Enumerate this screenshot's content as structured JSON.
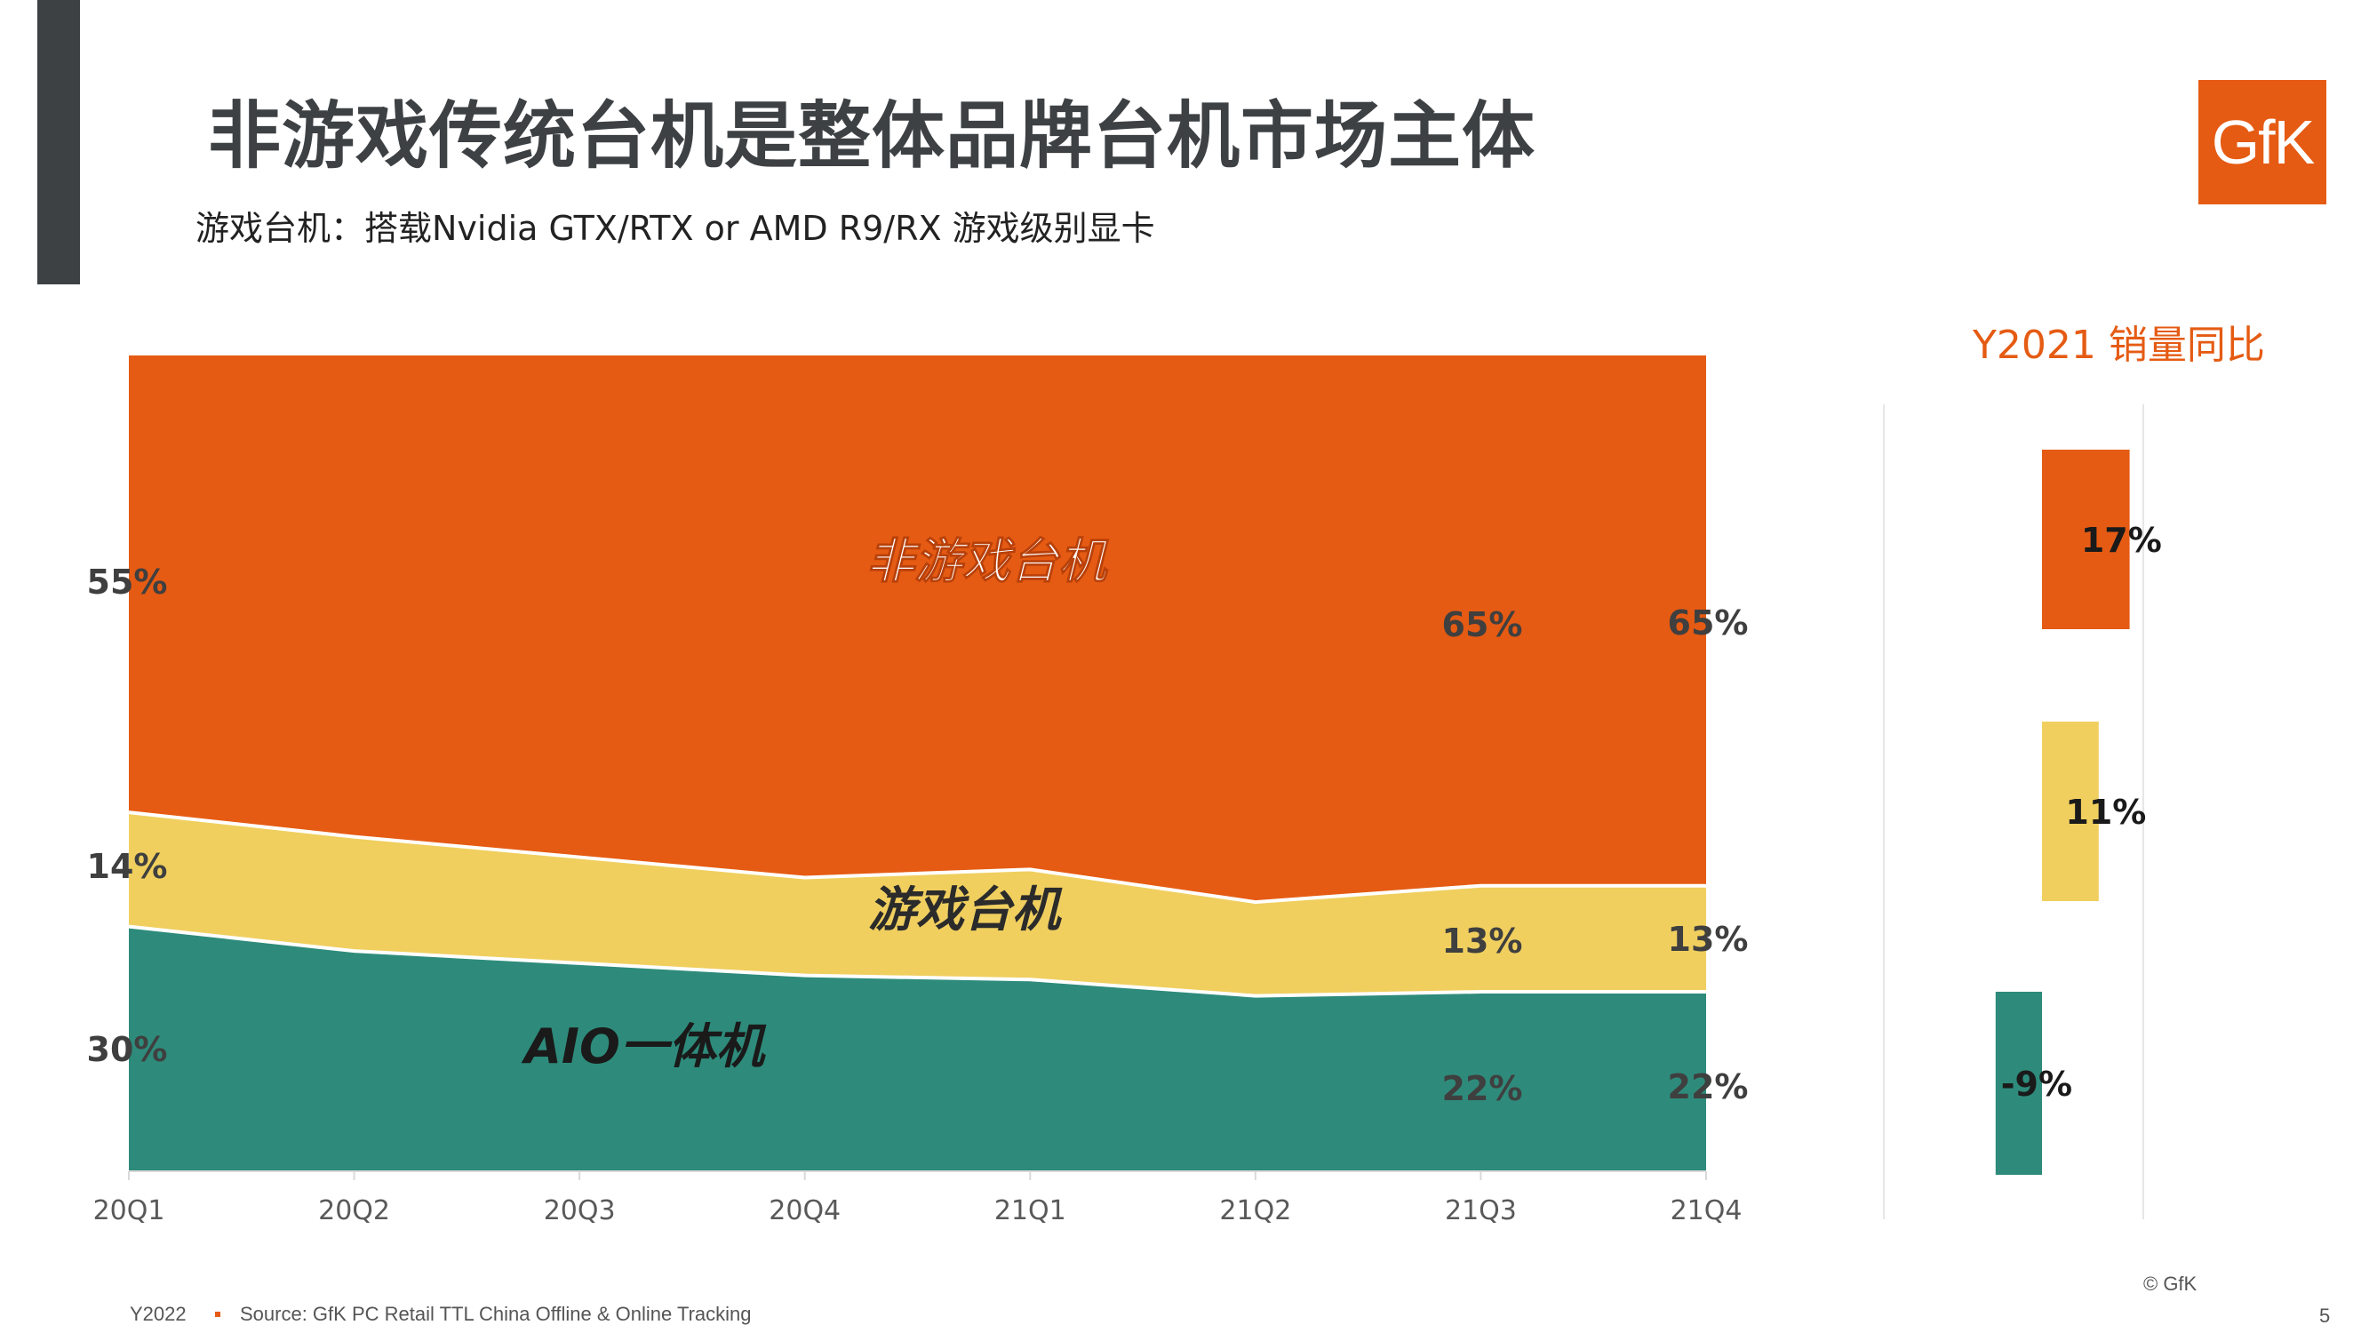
{
  "title": "非游戏传统台机是整体品牌台机市场主体",
  "subtitle": "游戏台机：搭载Nvidia GTX/RTX or AMD R9/RX 游戏级别显卡",
  "logo_text": "GfK",
  "yoy_title": "Y2021 销量同比",
  "footer": {
    "year": "Y2022",
    "source": "Source: GfK PC Retail TTL China Offline  & Online Tracking",
    "copyright": "© GfK",
    "page_number": "5"
  },
  "colors": {
    "non_gaming": "#e55b13",
    "gaming": "#f0cf5f",
    "aio": "#2e8b7b",
    "text_dark": "#3d4144",
    "axis_text": "#595959"
  },
  "chart_data": [
    {
      "type": "area",
      "stacked": true,
      "normalized": true,
      "x": [
        "20Q1",
        "20Q2",
        "20Q3",
        "20Q4",
        "21Q1",
        "21Q2",
        "21Q3",
        "21Q4"
      ],
      "ylim": [
        0,
        100
      ],
      "series": [
        {
          "name": "AIO一体机",
          "values": [
            30,
            27,
            25.5,
            24,
            23.5,
            21.5,
            22,
            22
          ]
        },
        {
          "name": "游戏台机",
          "values": [
            14,
            14,
            13,
            12,
            13.5,
            11.5,
            13,
            13
          ]
        },
        {
          "name": "非游戏台机",
          "values": [
            55,
            59,
            61.5,
            64,
            63,
            67,
            65,
            65
          ]
        }
      ],
      "data_labels": [
        {
          "series": "非游戏台机",
          "x": "20Q1",
          "text": "55%"
        },
        {
          "series": "游戏台机",
          "x": "20Q1",
          "text": "14%"
        },
        {
          "series": "AIO一体机",
          "x": "20Q1",
          "text": "30%"
        },
        {
          "series": "非游戏台机",
          "x": "21Q3",
          "text": "65%"
        },
        {
          "series": "游戏台机",
          "x": "21Q3",
          "text": "13%"
        },
        {
          "series": "AIO一体机",
          "x": "21Q3",
          "text": "22%"
        },
        {
          "series": "非游戏台机",
          "x": "21Q4",
          "text": "65%"
        },
        {
          "series": "游戏台机",
          "x": "21Q4",
          "text": "13%"
        },
        {
          "series": "AIO一体机",
          "x": "21Q4",
          "text": "22%"
        }
      ],
      "grid": false,
      "legend": "none"
    },
    {
      "type": "bar",
      "orientation": "horizontal",
      "title": "Y2021 销量同比",
      "categories": [
        "非游戏台机",
        "游戏台机",
        "AIO一体机"
      ],
      "values": [
        17,
        11,
        -9
      ],
      "labels": [
        "17%",
        "11%",
        "-9%"
      ]
    }
  ]
}
